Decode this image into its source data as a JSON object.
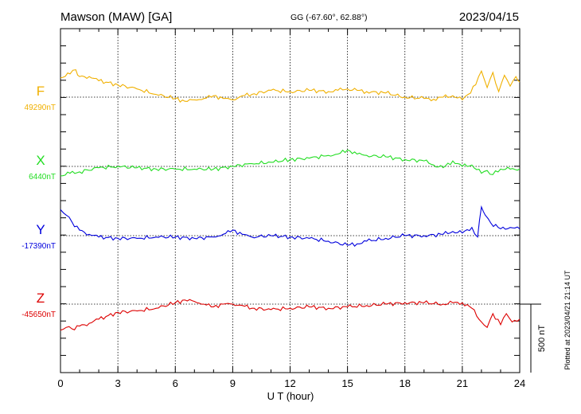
{
  "header": {
    "station": "Mawson (MAW)  [GA]",
    "coords": "GG (-67.60°,  62.88°)",
    "date": "2023/04/15"
  },
  "side_note": "Plotted at 2023/04/21 21:14 UT",
  "scale_label": "500 nT",
  "colors": {
    "F": "#f0b000",
    "X": "#22dd22",
    "Y": "#0000dd",
    "Z": "#dd0000"
  },
  "chart_data": {
    "type": "line",
    "xlabel": "U T (hour)",
    "xlim": [
      0,
      24
    ],
    "x_ticks": [
      "0",
      "3",
      "6",
      "9",
      "12",
      "15",
      "18",
      "21",
      "24"
    ],
    "scale_bar_nT": 500,
    "series": [
      {
        "name": "F",
        "baseline_label": "49290nT",
        "baseline": 49290,
        "x": [
          0,
          0.5,
          0.8,
          1,
          1.5,
          2,
          3,
          4,
          5,
          6,
          6.5,
          7,
          7.5,
          8,
          8.5,
          9,
          9.5,
          10,
          11,
          12,
          13,
          14,
          14.5,
          15,
          15.5,
          16,
          17,
          18,
          19,
          19.5,
          20,
          20.5,
          21,
          21.3,
          21.7,
          22,
          22.3,
          22.6,
          22.9,
          23.2,
          23.5,
          23.8,
          24
        ],
        "y": [
          49430,
          49460,
          49490,
          49440,
          49440,
          49410,
          49380,
          49350,
          49310,
          49280,
          49260,
          49270,
          49280,
          49300,
          49280,
          49270,
          49300,
          49310,
          49340,
          49330,
          49340,
          49330,
          49340,
          49350,
          49340,
          49330,
          49320,
          49290,
          49280,
          49275,
          49290,
          49300,
          49270,
          49310,
          49380,
          49480,
          49360,
          49470,
          49330,
          49450,
          49370,
          49440,
          49400
        ]
      },
      {
        "name": "X",
        "baseline_label": "6440nT",
        "baseline": 6440,
        "x": [
          0,
          0.5,
          1,
          2,
          3,
          4,
          5,
          6,
          7,
          8,
          9,
          10,
          11,
          12,
          13,
          14,
          14.5,
          15,
          15.5,
          16,
          17,
          18,
          19,
          19.5,
          20,
          20.5,
          21,
          21.5,
          22,
          22.3,
          22.6,
          23,
          23.5,
          24
        ],
        "y": [
          6370,
          6390,
          6400,
          6430,
          6440,
          6430,
          6420,
          6420,
          6420,
          6420,
          6440,
          6460,
          6470,
          6490,
          6500,
          6520,
          6530,
          6560,
          6530,
          6520,
          6510,
          6490,
          6480,
          6450,
          6430,
          6480,
          6440,
          6450,
          6390,
          6410,
          6380,
          6420,
          6420,
          6420
        ]
      },
      {
        "name": "Y",
        "baseline_label": "-17390nT",
        "baseline": -17390,
        "x": [
          0,
          0.3,
          0.6,
          1,
          1.5,
          2,
          3,
          4,
          5,
          6,
          7,
          8,
          8.5,
          9,
          9.5,
          10,
          11,
          12,
          13,
          14,
          15,
          15.5,
          16,
          17,
          18,
          19,
          20,
          20.5,
          21,
          21.5,
          21.8,
          22,
          22.2,
          22.5,
          23,
          23.5,
          24
        ],
        "y": [
          -17200,
          -17240,
          -17290,
          -17350,
          -17380,
          -17400,
          -17410,
          -17410,
          -17400,
          -17400,
          -17410,
          -17400,
          -17380,
          -17350,
          -17380,
          -17400,
          -17390,
          -17400,
          -17410,
          -17430,
          -17460,
          -17450,
          -17430,
          -17410,
          -17390,
          -17390,
          -17380,
          -17360,
          -17370,
          -17330,
          -17400,
          -17180,
          -17240,
          -17300,
          -17340,
          -17330,
          -17340
        ]
      },
      {
        "name": "Z",
        "baseline_label": "-45650nT",
        "baseline": -45650,
        "x": [
          0,
          0.3,
          0.6,
          1,
          1.5,
          2,
          3,
          4,
          5,
          6,
          6.5,
          7,
          7.5,
          8,
          8.5,
          9,
          9.5,
          10,
          11,
          12,
          13,
          14,
          15,
          16,
          17,
          18,
          19,
          20,
          20.5,
          21,
          21.5,
          22,
          22.3,
          22.6,
          23,
          23.3,
          23.6,
          24
        ],
        "y": [
          -45840,
          -45820,
          -45830,
          -45810,
          -45790,
          -45760,
          -45710,
          -45700,
          -45680,
          -45640,
          -45620,
          -45630,
          -45650,
          -45670,
          -45650,
          -45650,
          -45660,
          -45680,
          -45690,
          -45680,
          -45670,
          -45680,
          -45670,
          -45660,
          -45650,
          -45640,
          -45640,
          -45650,
          -45640,
          -45640,
          -45680,
          -45780,
          -45820,
          -45720,
          -45800,
          -45720,
          -45780,
          -45760
        ]
      }
    ]
  }
}
